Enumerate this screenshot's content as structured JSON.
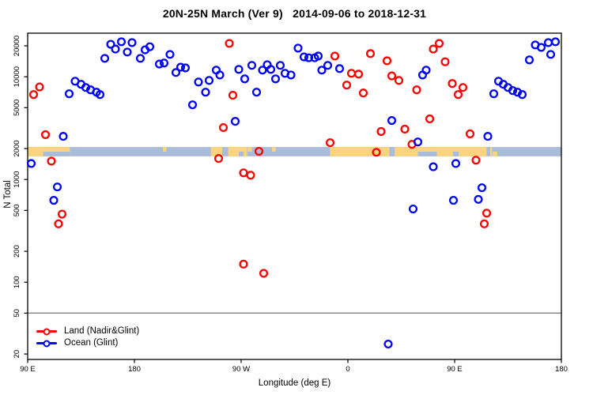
{
  "page": {
    "background": "#ffffff"
  },
  "chart_data": {
    "type": "scatter",
    "title": "20N-25N March (Ver 9)   2014-09-06 to 2018-12-31",
    "xlabel": "Longitude (deg E)",
    "ylabel": "N Total",
    "grid": false,
    "x_axis": {
      "min": 90,
      "max": 540,
      "ticks": [
        {
          "value": 90,
          "label": "90 E"
        },
        {
          "value": 180,
          "label": "180"
        },
        {
          "value": 270,
          "label": "90 W"
        },
        {
          "value": 360,
          "label": "0"
        },
        {
          "value": 450,
          "label": "90 E"
        },
        {
          "value": 540,
          "label": "180"
        }
      ]
    },
    "y_axis": {
      "scale": "log",
      "min": 17.7,
      "max": 26550,
      "ticks": [
        20,
        50,
        100,
        200,
        500,
        1000,
        2000,
        5000,
        10000,
        20000
      ]
    },
    "reference_line": {
      "n": 50,
      "color": "#808080"
    },
    "land_ocean_band": {
      "n_top": 2070,
      "n_bottom": 1680,
      "ocean_color": "#a9bcd9",
      "land_color": "#fcd37e",
      "segments": [
        {
          "from": 90,
          "to": 125.5,
          "kind": "land",
          "part": "full"
        },
        {
          "from": 103,
          "to": 125.5,
          "kind": "ocean",
          "part": "bottom"
        },
        {
          "from": 204,
          "to": 207,
          "kind": "land",
          "part": "top"
        },
        {
          "from": 244.5,
          "to": 254,
          "kind": "land",
          "part": "full"
        },
        {
          "from": 259,
          "to": 275,
          "kind": "land",
          "part": "full"
        },
        {
          "from": 268,
          "to": 272,
          "kind": "ocean",
          "part": "bottom"
        },
        {
          "from": 275.5,
          "to": 279,
          "kind": "land",
          "part": "top"
        },
        {
          "from": 296,
          "to": 299,
          "kind": "land",
          "part": "top"
        },
        {
          "from": 345,
          "to": 481.5,
          "kind": "land",
          "part": "full"
        },
        {
          "from": 395,
          "to": 399.5,
          "kind": "ocean",
          "part": "full"
        },
        {
          "from": 419,
          "to": 435,
          "kind": "ocean",
          "part": "bottom"
        },
        {
          "from": 448.5,
          "to": 453.5,
          "kind": "ocean",
          "part": "bottom"
        },
        {
          "from": 477,
          "to": 480,
          "kind": "ocean",
          "part": "full"
        },
        {
          "from": 482,
          "to": 486,
          "kind": "land",
          "part": "bottom"
        }
      ]
    },
    "legend": {
      "position": "bottom-left"
    },
    "series": [
      {
        "name": "Land (Nadir&Glint)",
        "color": "#ff0000",
        "points": [
          [
            100,
            7960
          ],
          [
            95,
            6710
          ],
          [
            260,
            21100
          ],
          [
            263,
            6600
          ],
          [
            349,
            15900
          ],
          [
            363,
            10800
          ],
          [
            369,
            10600
          ],
          [
            379,
            16800
          ],
          [
            393,
            14300
          ],
          [
            359,
            8290
          ],
          [
            373,
            6950
          ],
          [
            397,
            10200
          ],
          [
            403,
            9210
          ],
          [
            418,
            7460
          ],
          [
            432,
            18600
          ],
          [
            437,
            21100
          ],
          [
            442,
            14000
          ],
          [
            448,
            8590
          ],
          [
            453,
            6710
          ],
          [
            457,
            7860
          ],
          [
            429,
            3890
          ],
          [
            105,
            2730
          ],
          [
            110,
            1510
          ],
          [
            255,
            3200
          ],
          [
            251,
            1600
          ],
          [
            272,
            1160
          ],
          [
            278,
            1100
          ],
          [
            285,
            1880
          ],
          [
            345,
            2280
          ],
          [
            384,
            1840
          ],
          [
            388,
            2930
          ],
          [
            408,
            3090
          ],
          [
            414,
            2200
          ],
          [
            463,
            2780
          ],
          [
            468,
            1540
          ],
          [
            119,
            460
          ],
          [
            116,
            370
          ],
          [
            272,
            150
          ],
          [
            289,
            122
          ],
          [
            477,
            470
          ],
          [
            475,
            370
          ]
        ]
      },
      {
        "name": "Ocean (Glint)",
        "color": "#0000ff",
        "points": [
          [
            125,
            6830
          ],
          [
            130,
            9050
          ],
          [
            135,
            8440
          ],
          [
            139,
            7860
          ],
          [
            143,
            7460
          ],
          [
            148,
            7080
          ],
          [
            151,
            6710
          ],
          [
            155,
            15100
          ],
          [
            160,
            20700
          ],
          [
            164,
            18600
          ],
          [
            169,
            21900
          ],
          [
            174,
            17400
          ],
          [
            178,
            21500
          ],
          [
            185,
            15100
          ],
          [
            189,
            18300
          ],
          [
            193,
            19600
          ],
          [
            201,
            13300
          ],
          [
            205,
            13600
          ],
          [
            210,
            16500
          ],
          [
            215,
            11000
          ],
          [
            219,
            12400
          ],
          [
            223,
            12200
          ],
          [
            229,
            5330
          ],
          [
            234,
            8890
          ],
          [
            240,
            7080
          ],
          [
            243,
            9210
          ],
          [
            249,
            11600
          ],
          [
            252,
            10400
          ],
          [
            265,
            3680
          ],
          [
            268,
            11800
          ],
          [
            273,
            9540
          ],
          [
            279,
            12900
          ],
          [
            283,
            7080
          ],
          [
            288,
            11600
          ],
          [
            292,
            13100
          ],
          [
            295,
            11800
          ],
          [
            299,
            9540
          ],
          [
            303,
            12900
          ],
          [
            307,
            10800
          ],
          [
            312,
            10400
          ],
          [
            318,
            19000
          ],
          [
            323,
            15600
          ],
          [
            327,
            15300
          ],
          [
            332,
            15300
          ],
          [
            335,
            15900
          ],
          [
            338,
            11600
          ],
          [
            343,
            12900
          ],
          [
            353,
            12000
          ],
          [
            423,
            10400
          ],
          [
            426,
            11600
          ],
          [
            483,
            6830
          ],
          [
            487,
            9050
          ],
          [
            491,
            8440
          ],
          [
            495,
            7860
          ],
          [
            499,
            7330
          ],
          [
            503,
            7080
          ],
          [
            507,
            6710
          ],
          [
            513,
            14600
          ],
          [
            518,
            20400
          ],
          [
            523,
            19300
          ],
          [
            529,
            21500
          ],
          [
            535,
            21900
          ],
          [
            531,
            16500
          ],
          [
            93,
            1430
          ],
          [
            120,
            2630
          ],
          [
            115,
            846
          ],
          [
            112,
            627
          ],
          [
            397,
            3750
          ],
          [
            419,
            2320
          ],
          [
            432,
            1330
          ],
          [
            451,
            1430
          ],
          [
            478,
            2630
          ],
          [
            473,
            831
          ],
          [
            470,
            640
          ],
          [
            449,
            627
          ],
          [
            415,
            516
          ],
          [
            394,
            25
          ]
        ]
      }
    ]
  }
}
